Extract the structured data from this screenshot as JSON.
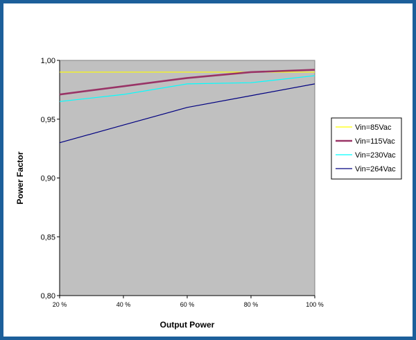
{
  "chart_data": {
    "type": "line",
    "title": "",
    "xlabel": "Output Power",
    "ylabel": "Power Factor",
    "categories": [
      "20 %",
      "40 %",
      "60 %",
      "80 %",
      "100 %"
    ],
    "yticks": [
      "0,80",
      "0,85",
      "0,90",
      "0,95",
      "1,00"
    ],
    "ylim": [
      0.8,
      1.0
    ],
    "grid": false,
    "legend_position": "right",
    "plot_background": "#c0c0c0",
    "frame_color": "#1d5f9a",
    "series": [
      {
        "name": "Vin=85Vac",
        "color": "#ffff00",
        "width": 1.2,
        "values": [
          0.99,
          0.99,
          0.99,
          0.99,
          0.99
        ]
      },
      {
        "name": "Vin=115Vac",
        "color": "#993366",
        "width": 2.6,
        "values": [
          0.971,
          0.978,
          0.985,
          0.99,
          0.992
        ]
      },
      {
        "name": "Vin=230Vac",
        "color": "#00ffff",
        "width": 1.2,
        "values": [
          0.965,
          0.971,
          0.98,
          0.981,
          0.987
        ]
      },
      {
        "name": "Vin=264Vac",
        "color": "#000080",
        "width": 1.2,
        "values": [
          0.93,
          0.945,
          0.96,
          0.97,
          0.98
        ]
      }
    ]
  }
}
